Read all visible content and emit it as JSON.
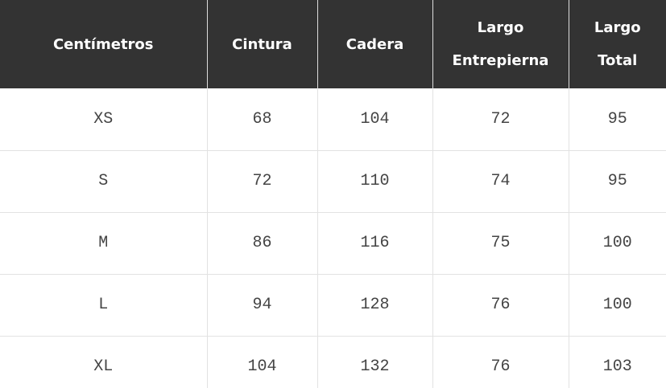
{
  "table": {
    "header": [
      "Centímetros",
      "Cintura",
      "Cadera",
      "Largo Entrepierna",
      "Largo Total"
    ],
    "rows": [
      [
        "XS",
        68,
        104,
        72,
        95
      ],
      [
        "S",
        72,
        110,
        74,
        95
      ],
      [
        "M",
        86,
        116,
        75,
        100
      ],
      [
        "L",
        94,
        128,
        76,
        100
      ],
      [
        "XL",
        104,
        132,
        76,
        103
      ]
    ]
  }
}
